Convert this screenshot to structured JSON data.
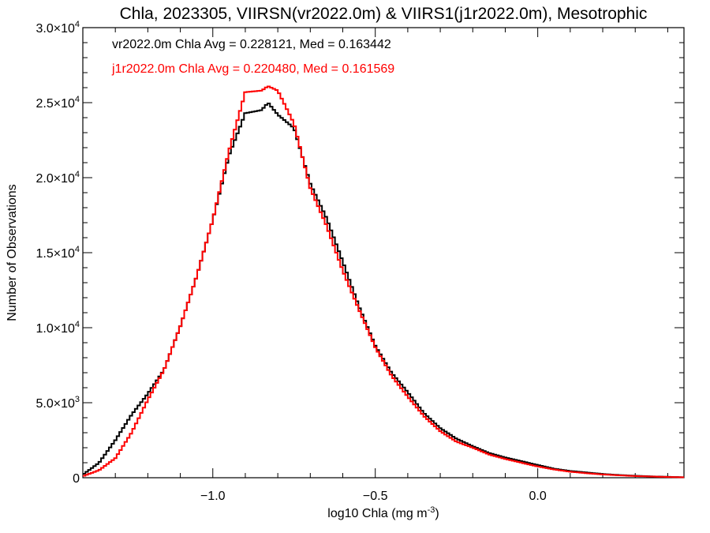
{
  "chart_data": {
    "type": "line",
    "title": "Chla, 2023305, VIIRSN(vr2022.0m) & VIIRS1(j1r2022.0m), Mesotrophic",
    "xlabel": "log10 Chla (mg m",
    "xlabel_sup": "-3",
    "xlabel_end": ")",
    "ylabel": "Number of Observations",
    "xlim": [
      -1.4,
      0.45
    ],
    "ylim": [
      0,
      30000
    ],
    "grid": false,
    "xticks": [
      {
        "value": -1.0,
        "label": "−1.0"
      },
      {
        "value": -0.5,
        "label": "−0.5"
      },
      {
        "value": 0.0,
        "label": "0.0"
      }
    ],
    "yticks": [
      {
        "value": 0,
        "mant": "0",
        "exp": ""
      },
      {
        "value": 5000,
        "mant": "5.0×10",
        "exp": "3"
      },
      {
        "value": 10000,
        "mant": "1.0×10",
        "exp": "4"
      },
      {
        "value": 15000,
        "mant": "1.5×10",
        "exp": "4"
      },
      {
        "value": 20000,
        "mant": "2.0×10",
        "exp": "4"
      },
      {
        "value": 25000,
        "mant": "2.5×10",
        "exp": "4"
      },
      {
        "value": 30000,
        "mant": "3.0×10",
        "exp": "4"
      }
    ],
    "annotations": [
      {
        "text": "vr2022.0m Chla Avg = 0.228121, Med = 0.163442",
        "color": "#000000"
      },
      {
        "text": "j1r2022.0m Chla Avg = 0.220480, Med = 0.161569",
        "color": "#ff0000"
      }
    ],
    "series": [
      {
        "color": "#000000",
        "x": [
          -1.4,
          -1.35,
          -1.3,
          -1.25,
          -1.2,
          -1.15,
          -1.1,
          -1.05,
          -1.0,
          -0.95,
          -0.9,
          -0.85,
          -0.83,
          -0.8,
          -0.75,
          -0.7,
          -0.65,
          -0.6,
          -0.55,
          -0.5,
          -0.45,
          -0.4,
          -0.35,
          -0.3,
          -0.25,
          -0.2,
          -0.15,
          -0.1,
          -0.05,
          0.0,
          0.05,
          0.1,
          0.15,
          0.2,
          0.25,
          0.3,
          0.35,
          0.4,
          0.45
        ],
        "y": [
          200,
          1000,
          2500,
          4200,
          5600,
          7200,
          10100,
          13400,
          17200,
          21500,
          24300,
          24500,
          25000,
          24200,
          23300,
          19600,
          17300,
          14400,
          11400,
          8800,
          7000,
          5700,
          4300,
          3300,
          2600,
          2100,
          1650,
          1350,
          1100,
          850,
          600,
          450,
          350,
          250,
          180,
          130,
          90,
          60,
          30
        ]
      },
      {
        "color": "#ff0000",
        "x": [
          -1.4,
          -1.35,
          -1.3,
          -1.25,
          -1.2,
          -1.15,
          -1.1,
          -1.05,
          -1.0,
          -0.95,
          -0.9,
          -0.85,
          -0.83,
          -0.8,
          -0.75,
          -0.7,
          -0.65,
          -0.6,
          -0.55,
          -0.5,
          -0.45,
          -0.4,
          -0.35,
          -0.3,
          -0.25,
          -0.2,
          -0.15,
          -0.1,
          -0.05,
          0.0,
          0.05,
          0.1,
          0.15,
          0.2,
          0.25,
          0.3,
          0.35,
          0.4,
          0.45
        ],
        "y": [
          100,
          500,
          1300,
          3000,
          5200,
          7200,
          10100,
          13400,
          17200,
          21800,
          25700,
          25800,
          26100,
          25800,
          23600,
          19300,
          16800,
          13800,
          11200,
          8700,
          6800,
          5400,
          4100,
          3100,
          2400,
          2000,
          1550,
          1250,
          1000,
          750,
          550,
          400,
          300,
          220,
          160,
          110,
          80,
          50,
          30
        ]
      }
    ]
  }
}
